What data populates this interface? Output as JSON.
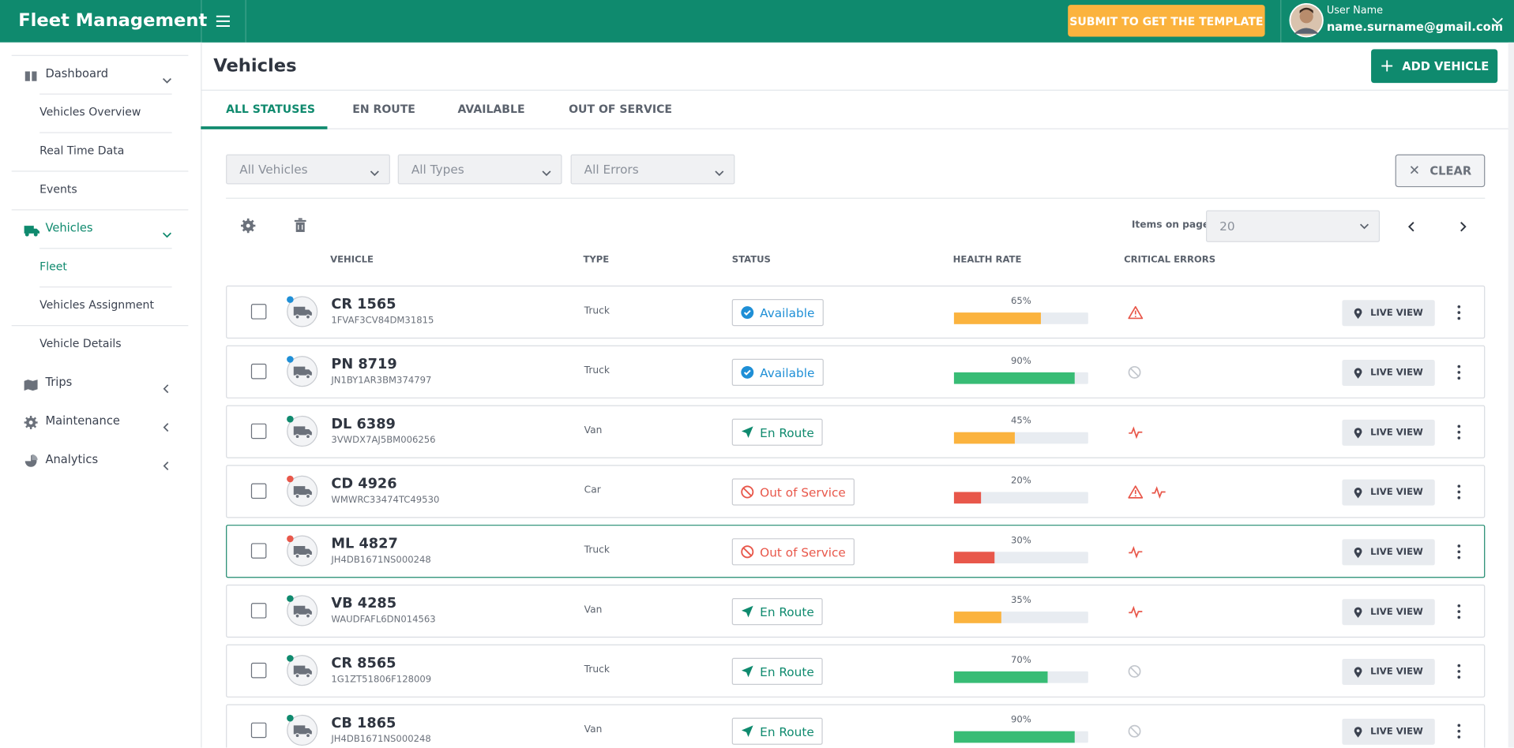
{
  "header": {
    "title": "Fleet Management",
    "cta": "SUBMIT TO GET THE TEMPLATE",
    "user_name": "User Name",
    "user_email": "name.surname@gmail.com"
  },
  "sidebar": [
    {
      "label": "Dashboard",
      "children": [
        "Vehicles Overview",
        "Real Time Data",
        "Events"
      ]
    },
    {
      "label": "Vehicles",
      "children": [
        "Fleet",
        "Vehicles Assignment",
        "Vehicle Details"
      ]
    },
    {
      "label": "Trips"
    },
    {
      "label": "Maintenance"
    },
    {
      "label": "Analytics"
    }
  ],
  "page": {
    "title": "Vehicles",
    "add_button": "ADD VEHICLE",
    "tabs": [
      "ALL STATUSES",
      "EN ROUTE",
      "AVAILABLE",
      "OUT OF SERVICE"
    ],
    "filters": [
      "All Vehicles",
      "All Types",
      "All Errors"
    ],
    "clear": "CLEAR",
    "items_label": "Items on page",
    "items_value": 20,
    "columns": [
      "VEHICLE",
      "TYPE",
      "STATUS",
      "HEALTH RATE",
      "CRITICAL ERRORS"
    ],
    "live_view": "LIVE VIEW"
  },
  "vehicles": [
    {
      "name": "CR 1565",
      "vin": "1FVAF3CV84DM31815",
      "type": "Truck",
      "status": "Available",
      "health": 65,
      "health_label": "65%"
    },
    {
      "name": "PN 8719",
      "vin": "JN1BY1AR3BM374797",
      "type": "Truck",
      "status": "Available",
      "health": 90,
      "health_label": "90%"
    },
    {
      "name": "DL 6389",
      "vin": "3VWDX7AJ5BM006256",
      "type": "Van",
      "status": "En Route",
      "health": 45,
      "health_label": "45%"
    },
    {
      "name": "CD 4926",
      "vin": "WMWRC33474TC49530",
      "type": "Car",
      "status": "Out of Service",
      "health": 20,
      "health_label": "20%"
    },
    {
      "name": "ML 4827",
      "vin": "JH4DB1671NS000248",
      "type": "Truck",
      "status": "Out of Service",
      "health": 30,
      "health_label": "30%"
    },
    {
      "name": "VB 4285",
      "vin": "WAUDFAFL6DN014563",
      "type": "Van",
      "status": "En Route",
      "health": 35,
      "health_label": "35%"
    },
    {
      "name": "CR 8565",
      "vin": "1G1ZT51806F128009",
      "type": "Truck",
      "status": "En Route",
      "health": 70,
      "health_label": "70%"
    },
    {
      "name": "CB 1865",
      "vin": "JH4DB1671NS000248",
      "type": "Van",
      "status": "En Route",
      "health": 90,
      "health_label": "90%"
    }
  ]
}
